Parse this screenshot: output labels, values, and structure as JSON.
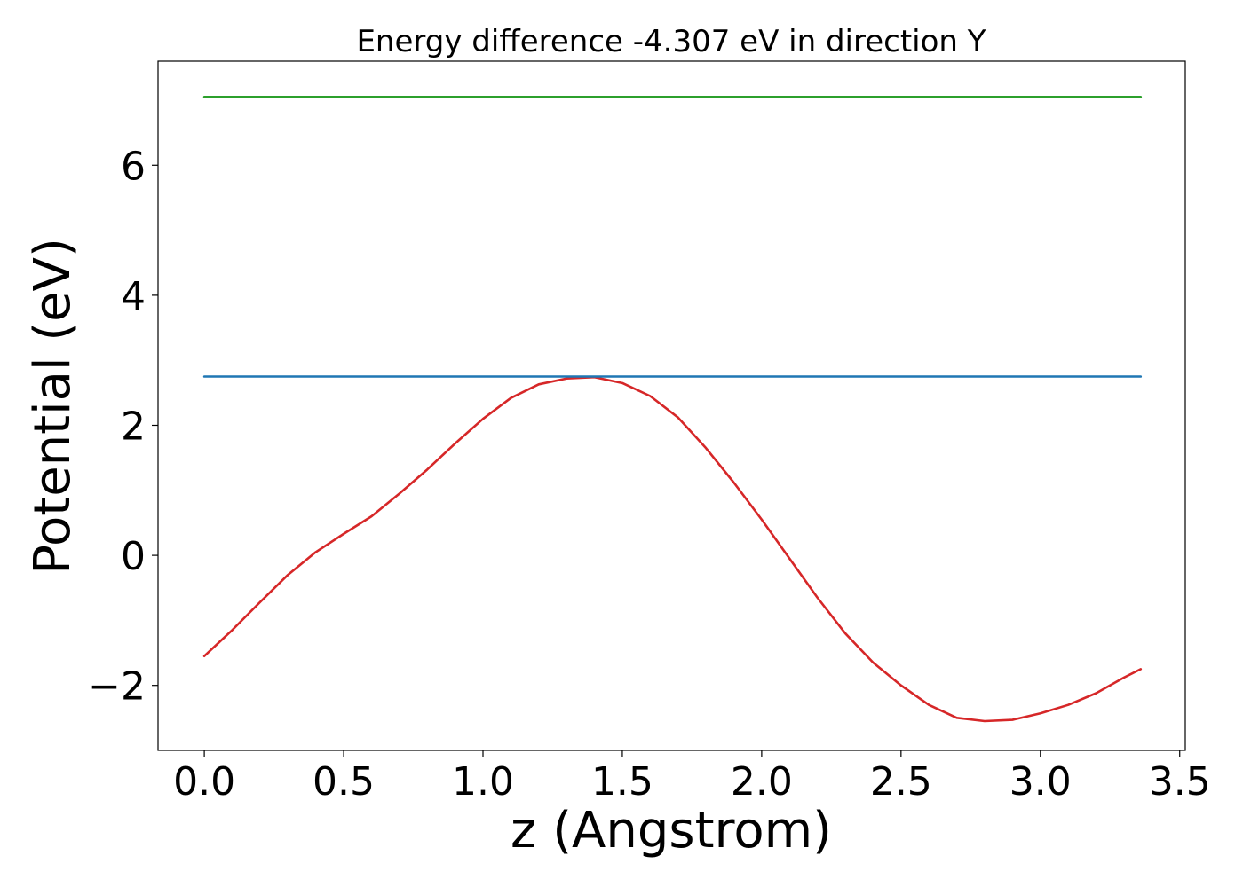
{
  "chart_data": {
    "type": "line",
    "title": "Energy difference -4.307 eV in direction Y",
    "xlabel": "z (Angstrom)",
    "ylabel": "Potential (eV)",
    "xlim": [
      -0.166,
      3.52
    ],
    "ylim": [
      -3.0,
      7.6
    ],
    "xticks": [
      0.0,
      0.5,
      1.0,
      1.5,
      2.0,
      2.5,
      3.0,
      3.5
    ],
    "xtick_labels": [
      "0.0",
      "0.5",
      "1.0",
      "1.5",
      "2.0",
      "2.5",
      "3.0",
      "3.5"
    ],
    "yticks": [
      -2,
      0,
      2,
      4,
      6
    ],
    "ytick_labels": [
      "−2",
      "0",
      "2",
      "4",
      "6"
    ],
    "grid": false,
    "series": [
      {
        "color": "#d62728",
        "x": [
          0.0,
          0.1,
          0.2,
          0.3,
          0.4,
          0.5,
          0.6,
          0.7,
          0.8,
          0.9,
          1.0,
          1.1,
          1.2,
          1.3,
          1.4,
          1.5,
          1.6,
          1.7,
          1.8,
          1.9,
          2.0,
          2.1,
          2.2,
          2.3,
          2.4,
          2.5,
          2.6,
          2.7,
          2.8,
          2.9,
          3.0,
          3.1,
          3.2,
          3.3,
          3.36
        ],
        "values": [
          -1.55,
          -1.15,
          -0.72,
          -0.3,
          0.05,
          0.33,
          0.6,
          0.95,
          1.32,
          1.72,
          2.1,
          2.42,
          2.63,
          2.72,
          2.74,
          2.65,
          2.45,
          2.12,
          1.65,
          1.12,
          0.55,
          -0.05,
          -0.65,
          -1.2,
          -1.65,
          -2.0,
          -2.3,
          -2.5,
          -2.55,
          -2.53,
          -2.43,
          -2.3,
          -2.12,
          -1.88,
          -1.75
        ]
      },
      {
        "color": "#1f77b4",
        "x": [
          0.0,
          3.36
        ],
        "values": [
          2.75,
          2.75
        ]
      },
      {
        "color": "#2ca02c",
        "x": [
          0.0,
          3.36
        ],
        "values": [
          7.05,
          7.05
        ]
      }
    ]
  }
}
